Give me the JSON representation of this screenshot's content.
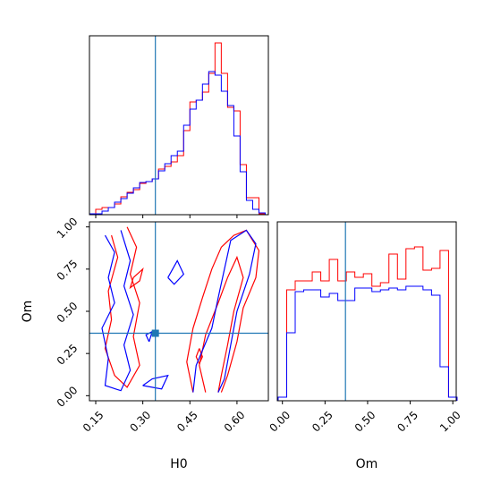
{
  "colors": {
    "series_a": "#ff0000",
    "series_b": "#0000ff",
    "truth": "#1f77b4",
    "frame": "#000000"
  },
  "chart_data": [
    {
      "type": "histogram",
      "panel": "H0 marginal",
      "x": [
        0.14,
        0.16,
        0.18,
        0.2,
        0.22,
        0.24,
        0.26,
        0.28,
        0.3,
        0.32,
        0.34,
        0.36,
        0.38,
        0.4,
        0.42,
        0.44,
        0.46,
        0.48,
        0.5,
        0.52,
        0.54,
        0.56,
        0.58,
        0.6,
        0.62,
        0.64,
        0.66,
        0.68
      ],
      "bin_edges_start": 0.13,
      "bin_width": 0.02,
      "series": [
        {
          "name": "",
          "color_key": "series_a",
          "values": [
            0.005,
            0.03,
            0.04,
            0.04,
            0.06,
            0.1,
            0.125,
            0.14,
            0.175,
            0.185,
            0.2,
            0.255,
            0.27,
            0.295,
            0.33,
            0.47,
            0.63,
            0.64,
            0.685,
            0.79,
            0.96,
            0.79,
            0.6,
            0.58,
            0.28,
            0.095,
            0.095,
            0.005
          ]
        },
        {
          "name": "",
          "color_key": "series_b",
          "values": [
            0.005,
            0.005,
            0.02,
            0.04,
            0.07,
            0.09,
            0.12,
            0.15,
            0.18,
            0.185,
            0.2,
            0.245,
            0.285,
            0.33,
            0.355,
            0.5,
            0.59,
            0.64,
            0.73,
            0.8,
            0.78,
            0.69,
            0.61,
            0.44,
            0.24,
            0.08,
            0.03,
            0.01
          ]
        }
      ],
      "truth": 0.34,
      "xlim": [
        0.13,
        0.7
      ],
      "ylim": [
        0,
        1.0
      ],
      "xticks": [
        0.15,
        0.3,
        0.45,
        0.6
      ]
    },
    {
      "type": "histogram",
      "panel": "Om marginal",
      "x": [
        0.0,
        0.05,
        0.1,
        0.15,
        0.2,
        0.25,
        0.3,
        0.35,
        0.4,
        0.45,
        0.5,
        0.55,
        0.6,
        0.65,
        0.7,
        0.75,
        0.8,
        0.85,
        0.9,
        0.95,
        1.0
      ],
      "bin_edges_start": -0.025,
      "bin_width": 0.05,
      "series": [
        {
          "name": "",
          "color_key": "series_a",
          "values": [
            0.02,
            0.62,
            0.67,
            0.67,
            0.72,
            0.67,
            0.79,
            0.67,
            0.72,
            0.69,
            0.71,
            0.64,
            0.66,
            0.82,
            0.68,
            0.85,
            0.86,
            0.73,
            0.74,
            0.84,
            0.02
          ]
        },
        {
          "name": "",
          "color_key": "series_b",
          "values": [
            0.02,
            0.38,
            0.61,
            0.62,
            0.62,
            0.58,
            0.6,
            0.56,
            0.56,
            0.63,
            0.63,
            0.61,
            0.62,
            0.63,
            0.62,
            0.64,
            0.64,
            0.62,
            0.59,
            0.19,
            0.02
          ]
        }
      ],
      "truth": 0.37,
      "xlim": [
        -0.03,
        1.02
      ],
      "ylim": [
        0,
        1.0
      ],
      "xticks": [
        0.0,
        0.25,
        0.5,
        0.75,
        1.0
      ],
      "xlabel": "Om"
    },
    {
      "type": "contour",
      "panel": "H0 vs Om joint",
      "series": [
        {
          "name": "",
          "color_key": "series_a",
          "contours": [
            [
              [
                0.2,
                0.95
              ],
              [
                0.22,
                0.82
              ],
              [
                0.19,
                0.62
              ],
              [
                0.2,
                0.45
              ],
              [
                0.18,
                0.28
              ],
              [
                0.21,
                0.12
              ],
              [
                0.25,
                0.05
              ],
              [
                0.29,
                0.18
              ],
              [
                0.27,
                0.35
              ],
              [
                0.29,
                0.55
              ],
              [
                0.26,
                0.72
              ],
              [
                0.28,
                0.88
              ],
              [
                0.25,
                1.0
              ]
            ],
            [
              [
                0.46,
                0.02
              ],
              [
                0.44,
                0.2
              ],
              [
                0.46,
                0.4
              ],
              [
                0.49,
                0.58
              ],
              [
                0.52,
                0.75
              ],
              [
                0.55,
                0.88
              ],
              [
                0.59,
                0.95
              ],
              [
                0.63,
                0.98
              ],
              [
                0.67,
                0.86
              ],
              [
                0.66,
                0.7
              ],
              [
                0.62,
                0.52
              ],
              [
                0.6,
                0.32
              ],
              [
                0.57,
                0.12
              ],
              [
                0.55,
                0.02
              ]
            ],
            [
              [
                0.5,
                0.02
              ],
              [
                0.48,
                0.18
              ],
              [
                0.5,
                0.36
              ],
              [
                0.54,
                0.55
              ],
              [
                0.57,
                0.7
              ],
              [
                0.6,
                0.82
              ],
              [
                0.62,
                0.7
              ],
              [
                0.59,
                0.5
              ],
              [
                0.57,
                0.3
              ],
              [
                0.55,
                0.12
              ],
              [
                0.54,
                0.02
              ]
            ],
            [
              [
                0.27,
                0.7
              ],
              [
                0.3,
                0.75
              ],
              [
                0.29,
                0.68
              ],
              [
                0.26,
                0.64
              ],
              [
                0.27,
                0.7
              ]
            ],
            [
              [
                0.48,
                0.28
              ],
              [
                0.49,
                0.23
              ],
              [
                0.48,
                0.19
              ],
              [
                0.47,
                0.23
              ],
              [
                0.48,
                0.28
              ]
            ]
          ]
        },
        {
          "name": "",
          "color_key": "series_b",
          "contours": [
            [
              [
                0.18,
                0.95
              ],
              [
                0.21,
                0.85
              ],
              [
                0.19,
                0.7
              ],
              [
                0.21,
                0.55
              ],
              [
                0.17,
                0.4
              ],
              [
                0.19,
                0.22
              ],
              [
                0.18,
                0.06
              ],
              [
                0.23,
                0.03
              ],
              [
                0.26,
                0.15
              ],
              [
                0.24,
                0.3
              ],
              [
                0.27,
                0.48
              ],
              [
                0.24,
                0.65
              ],
              [
                0.26,
                0.8
              ],
              [
                0.23,
                0.98
              ]
            ],
            [
              [
                0.46,
                0.02
              ],
              [
                0.47,
                0.18
              ],
              [
                0.52,
                0.4
              ],
              [
                0.54,
                0.58
              ],
              [
                0.56,
                0.75
              ],
              [
                0.58,
                0.92
              ],
              [
                0.63,
                0.98
              ],
              [
                0.66,
                0.9
              ],
              [
                0.64,
                0.72
              ],
              [
                0.6,
                0.5
              ],
              [
                0.58,
                0.3
              ],
              [
                0.56,
                0.1
              ],
              [
                0.54,
                0.02
              ]
            ],
            [
              [
                0.3,
                0.06
              ],
              [
                0.36,
                0.04
              ],
              [
                0.38,
                0.12
              ],
              [
                0.33,
                0.1
              ],
              [
                0.3,
                0.06
              ]
            ],
            [
              [
                0.38,
                0.7
              ],
              [
                0.41,
                0.8
              ],
              [
                0.43,
                0.72
              ],
              [
                0.4,
                0.66
              ],
              [
                0.38,
                0.7
              ]
            ],
            [
              [
                0.32,
                0.32
              ],
              [
                0.33,
                0.38
              ],
              [
                0.31,
                0.36
              ],
              [
                0.32,
                0.32
              ]
            ]
          ]
        }
      ],
      "truth_point": [
        0.34,
        0.37
      ],
      "xlim": [
        0.13,
        0.7
      ],
      "ylim": [
        -0.03,
        1.03
      ],
      "xticks": [
        0.15,
        0.3,
        0.45,
        0.6
      ],
      "yticks": [
        0.0,
        0.25,
        0.5,
        0.75,
        1.0
      ],
      "xlabel": "H0",
      "ylabel": "Om"
    }
  ]
}
